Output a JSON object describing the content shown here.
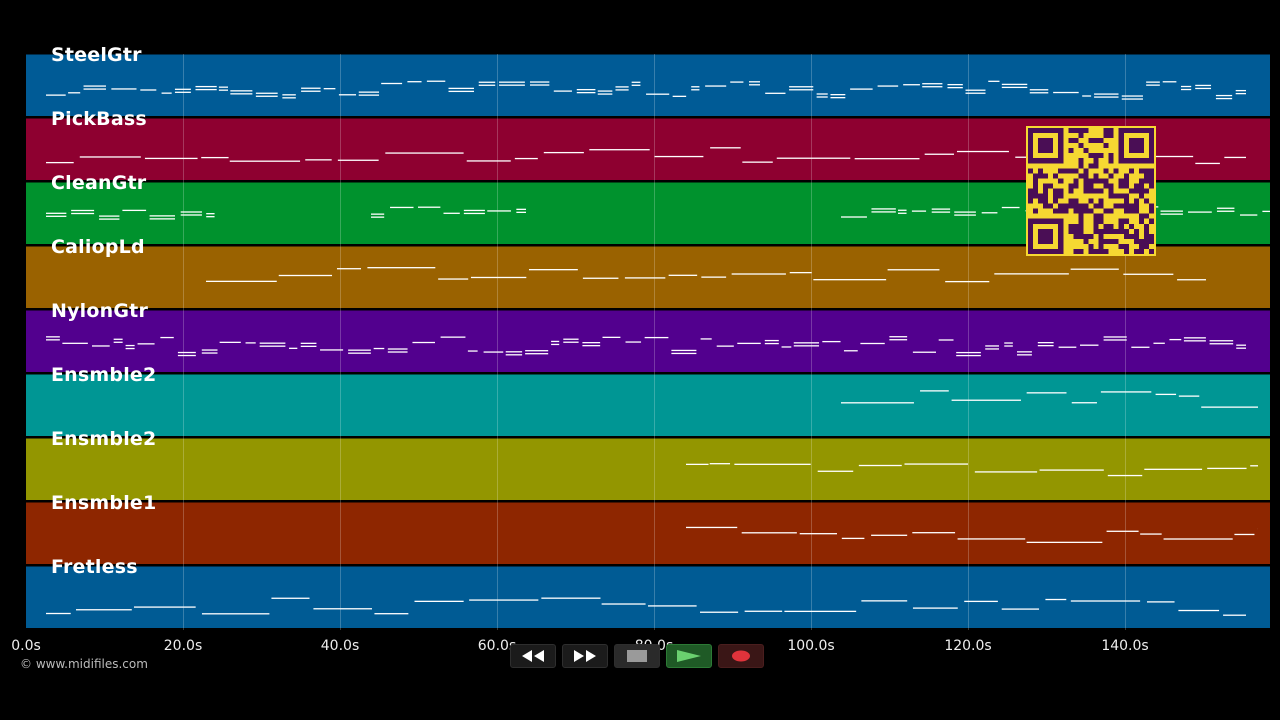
{
  "tracks": [
    {
      "name": "SteelGtr",
      "color": "#005b96"
    },
    {
      "name": "PickBass",
      "color": "#8e0030"
    },
    {
      "name": "CleanGtr",
      "color": "#00922d"
    },
    {
      "name": "CaliopLd",
      "color": "#9a6200"
    },
    {
      "name": "NylonGtr",
      "color": "#52008e"
    },
    {
      "name": "Ensmble2",
      "color": "#009694"
    },
    {
      "name": "Ensmble2",
      "color": "#939600"
    },
    {
      "name": "Ensmble1",
      "color": "#8e2600"
    },
    {
      "name": "Fretless",
      "color": "#005b94"
    }
  ],
  "timeline": {
    "ticks": [
      "0.0s",
      "20.0s",
      "40.0s",
      "60.0s",
      "80.0s",
      "100.0s",
      "120.0s",
      "140.0s"
    ]
  },
  "copyright": "© www.midifiles.com",
  "transport": {
    "rewind_icon": "rewind-icon",
    "forward_icon": "fast-forward-icon",
    "stop_icon": "stop-icon",
    "play_icon": "play-icon",
    "record_icon": "record-icon"
  },
  "qr_code": {
    "icon": "qr-code-icon",
    "color": "#f6d832",
    "module_color": "#4a0e55"
  }
}
